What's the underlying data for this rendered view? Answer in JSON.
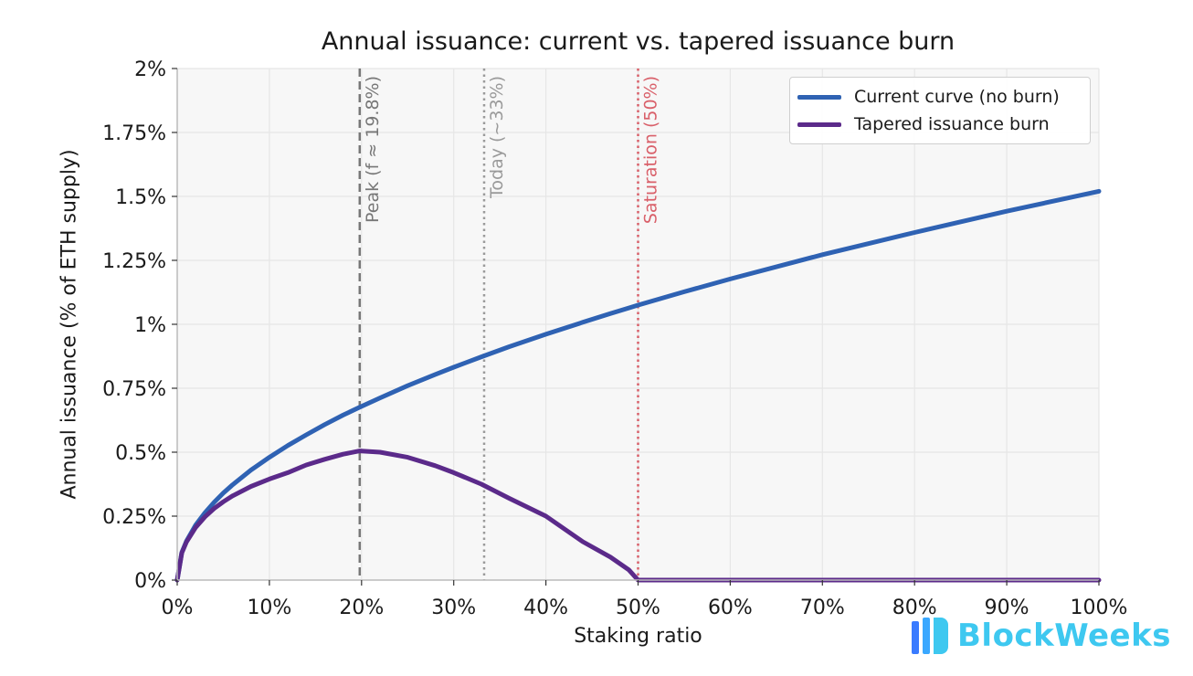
{
  "chart_data": {
    "type": "line",
    "title": "Annual issuance: current vs. tapered issuance burn",
    "xlabel": "Staking ratio",
    "ylabel": "Annual issuance (% of ETH supply)",
    "xlim": [
      0,
      100
    ],
    "ylim": [
      0,
      2
    ],
    "x_ticks": [
      {
        "value": 0,
        "label": "0%"
      },
      {
        "value": 10,
        "label": "10%"
      },
      {
        "value": 20,
        "label": "20%"
      },
      {
        "value": 30,
        "label": "30%"
      },
      {
        "value": 40,
        "label": "40%"
      },
      {
        "value": 50,
        "label": "50%"
      },
      {
        "value": 60,
        "label": "60%"
      },
      {
        "value": 70,
        "label": "70%"
      },
      {
        "value": 80,
        "label": "80%"
      },
      {
        "value": 90,
        "label": "90%"
      },
      {
        "value": 100,
        "label": "100%"
      }
    ],
    "y_ticks": [
      {
        "value": 0,
        "label": "0%"
      },
      {
        "value": 0.25,
        "label": "0.25%"
      },
      {
        "value": 0.5,
        "label": "0.5%"
      },
      {
        "value": 0.75,
        "label": "0.75%"
      },
      {
        "value": 1,
        "label": "1%"
      },
      {
        "value": 1.25,
        "label": "1.25%"
      },
      {
        "value": 1.5,
        "label": "1.5%"
      },
      {
        "value": 1.75,
        "label": "1.75%"
      },
      {
        "value": 2,
        "label": "2%"
      }
    ],
    "grid": true,
    "legend_position": "top-right",
    "x": [
      0,
      0.5,
      1,
      2,
      3,
      4,
      5,
      6,
      8,
      10,
      12,
      14,
      16,
      18,
      19.8,
      22,
      25,
      28,
      30,
      33,
      36,
      40,
      44,
      47,
      49,
      50,
      55,
      60,
      70,
      80,
      90,
      100
    ],
    "series": [
      {
        "name": "Current curve (no burn)",
        "color": "#2f62b3",
        "values": [
          0,
          0.108,
          0.152,
          0.215,
          0.263,
          0.304,
          0.34,
          0.372,
          0.43,
          0.48,
          0.526,
          0.568,
          0.608,
          0.645,
          0.676,
          0.712,
          0.76,
          0.804,
          0.832,
          0.873,
          0.912,
          0.961,
          1.008,
          1.042,
          1.064,
          1.075,
          1.127,
          1.177,
          1.272,
          1.359,
          1.442,
          1.52
        ]
      },
      {
        "name": "Tapered issuance burn",
        "color": "#5b2a8a",
        "values": [
          0,
          0.106,
          0.149,
          0.206,
          0.247,
          0.28,
          0.306,
          0.329,
          0.366,
          0.395,
          0.42,
          0.45,
          0.472,
          0.492,
          0.505,
          0.5,
          0.48,
          0.447,
          0.42,
          0.375,
          0.32,
          0.25,
          0.15,
          0.09,
          0.04,
          0,
          0,
          0,
          0,
          0,
          0,
          0
        ]
      }
    ],
    "reference_lines": [
      {
        "x": 19.8,
        "label": "Peak (f ≈ 19.8%)",
        "color": "#777777",
        "style": "dashed"
      },
      {
        "x": 33.3,
        "label": "Today (~33%)",
        "color": "#9a9a9a",
        "style": "dotted"
      },
      {
        "x": 50,
        "label": "Saturation (50%)",
        "color": "#d9606a",
        "style": "dotted"
      }
    ]
  },
  "watermark": {
    "text": "BlockWeeks",
    "icon": "blockweeks-logo-icon",
    "color": "#3ec8f0"
  }
}
